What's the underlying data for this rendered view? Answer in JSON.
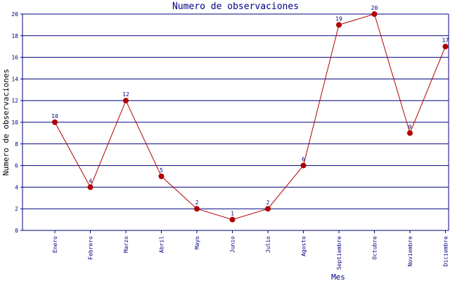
{
  "chart_data": {
    "type": "line",
    "title": "Numero de observaciones",
    "xlabel": "Mes",
    "ylabel": "Numero de observaciones",
    "categories": [
      "Enero",
      "Febrero",
      "Marzo",
      "Abril",
      "Mayo",
      "Junio",
      "Julio",
      "Agosto",
      "Septiembre",
      "Octubre",
      "Noviembre",
      "Diciembre"
    ],
    "series": [
      {
        "values": [
          10,
          4,
          12,
          5,
          2,
          1,
          2,
          6,
          19,
          20,
          9,
          17
        ]
      }
    ],
    "ylim": [
      0,
      20
    ],
    "yticks": [
      0,
      2,
      4,
      6,
      8,
      10,
      12,
      14,
      16,
      18,
      20
    ],
    "grid": "horizontal",
    "data_labels": true,
    "colors": {
      "line": "#b00000",
      "marker": "#b00000",
      "grid": "#000080",
      "text": "#000080",
      "axes": "#000080",
      "data_label": "#000080"
    }
  }
}
